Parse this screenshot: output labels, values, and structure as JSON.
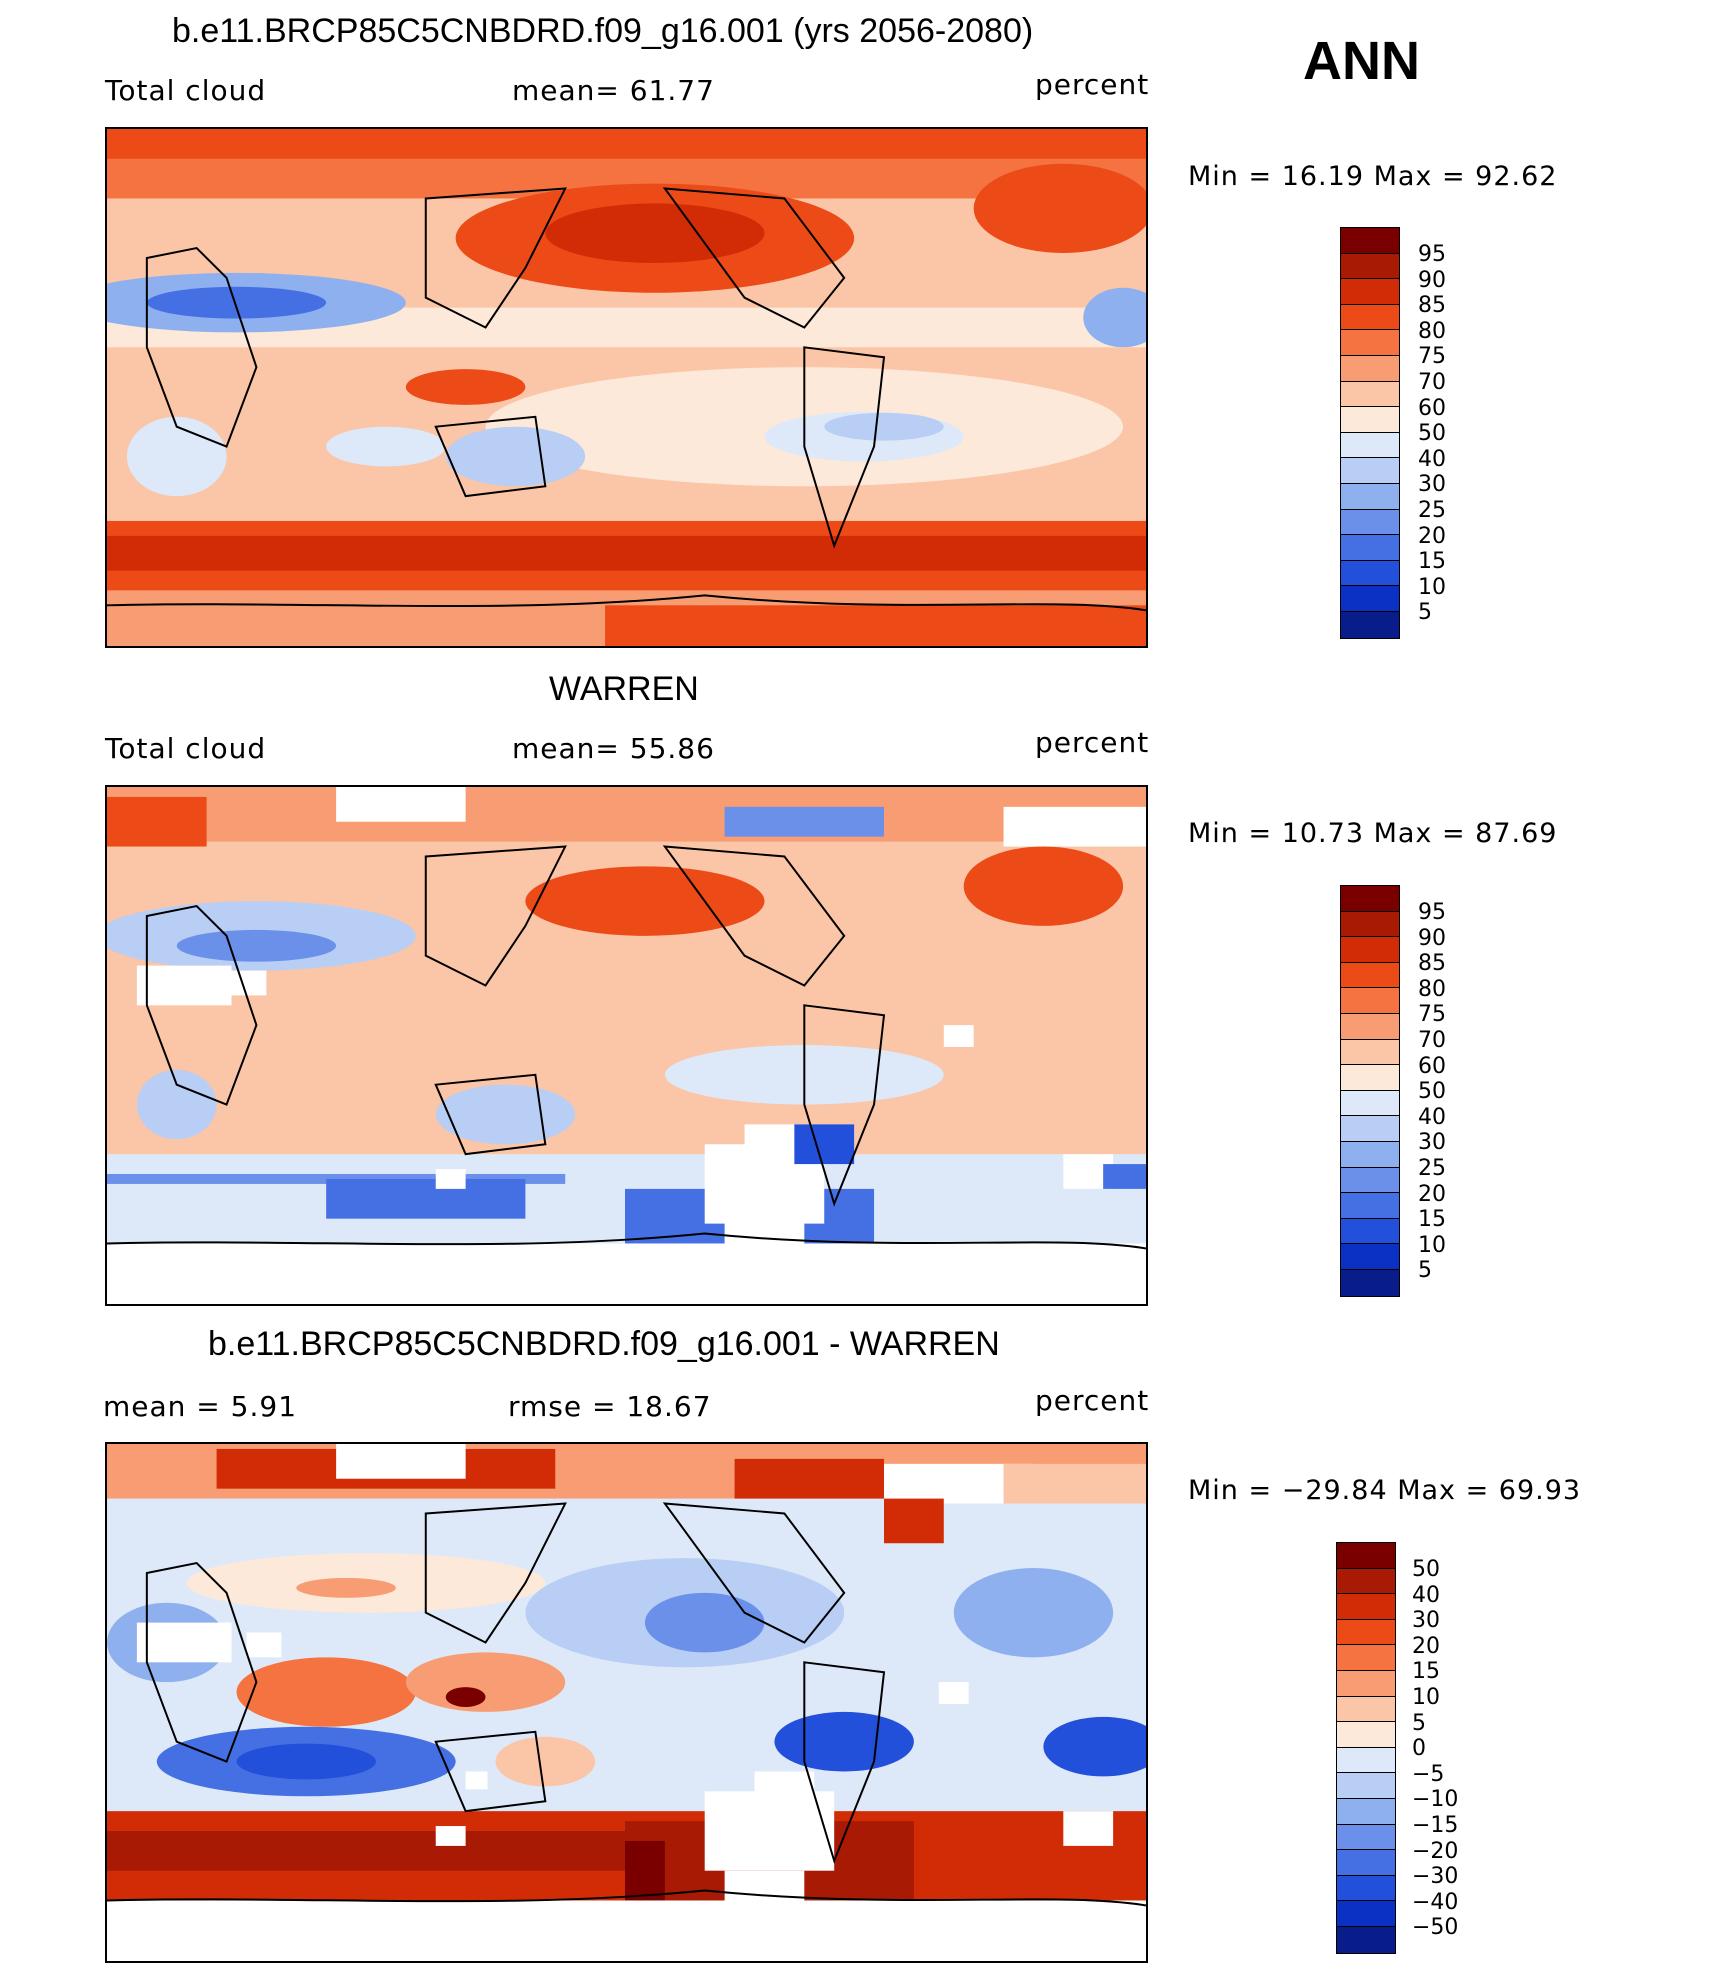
{
  "header": {
    "season": "ANN"
  },
  "panels": [
    {
      "title": "b.e11.BRCP85C5CNBDRD.f09_g16.001 (yrs 2056-2080)",
      "left_label": "Total cloud",
      "mid_label": "mean=  61.77",
      "right_label": "percent",
      "minmax": "Min =   16.19 Max =   92.62",
      "colorbar": {
        "labels": [
          "95",
          "90",
          "85",
          "80",
          "75",
          "70",
          "60",
          "50",
          "40",
          "30",
          "25",
          "20",
          "15",
          "10",
          "5"
        ],
        "colors": [
          "#7a0000",
          "#a81a04",
          "#d12c06",
          "#ec4a17",
          "#f47340",
          "#f89c74",
          "#fbc5a7",
          "#fde9d9",
          "#dde9f8",
          "#b9cef4",
          "#8fb0ef",
          "#6a90ea",
          "#4470e4",
          "#2350db",
          "#0a30c4",
          "#081c8a"
        ]
      }
    },
    {
      "title": "WARREN",
      "left_label": "Total cloud",
      "mid_label": "mean=  55.86",
      "right_label": "percent",
      "minmax": "Min =   10.73 Max =   87.69",
      "colorbar": {
        "labels": [
          "95",
          "90",
          "85",
          "80",
          "75",
          "70",
          "60",
          "50",
          "40",
          "30",
          "25",
          "20",
          "15",
          "10",
          "5"
        ],
        "colors": [
          "#7a0000",
          "#a81a04",
          "#d12c06",
          "#ec4a17",
          "#f47340",
          "#f89c74",
          "#fbc5a7",
          "#fde9d9",
          "#dde9f8",
          "#b9cef4",
          "#8fb0ef",
          "#6a90ea",
          "#4470e4",
          "#2350db",
          "#0a30c4",
          "#081c8a"
        ]
      }
    },
    {
      "title": "b.e11.BRCP85C5CNBDRD.f09_g16.001 - WARREN",
      "left_label": "mean =    5.91",
      "mid_label": "rmse =   18.67",
      "right_label": "percent",
      "minmax": "Min = −29.84 Max =   69.93",
      "colorbar": {
        "labels": [
          "50",
          "40",
          "30",
          "20",
          "15",
          "10",
          "5",
          "0",
          "−5",
          "−10",
          "−15",
          "−20",
          "−30",
          "−40",
          "−50"
        ],
        "colors": [
          "#7a0000",
          "#a81a04",
          "#d12c06",
          "#ec4a17",
          "#f47340",
          "#f89c74",
          "#fbc5a7",
          "#fde9d9",
          "#dde9f8",
          "#b9cef4",
          "#8fb0ef",
          "#6a90ea",
          "#4470e4",
          "#2350db",
          "#0a30c4",
          "#081c8a"
        ]
      }
    }
  ]
}
